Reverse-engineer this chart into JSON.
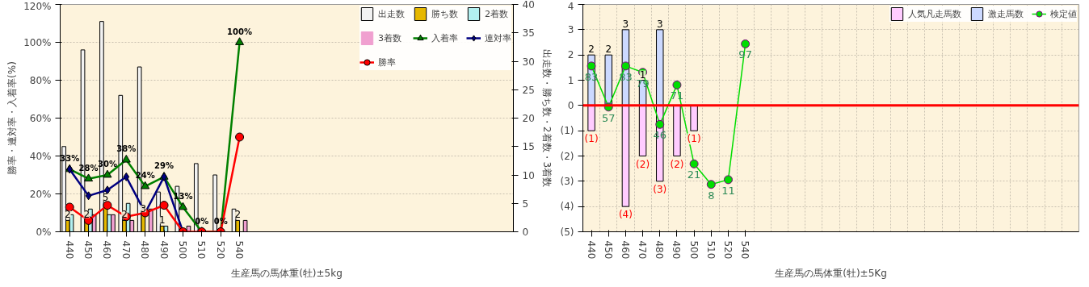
{
  "chart_data": [
    {
      "type": "bar",
      "xlabel": "生産馬の馬体重(牡)±5kg",
      "ylabel": "勝率・連対率・入着率(%)",
      "y2label": "出走数・勝ち数・2着数・3着数",
      "categories": [
        "440",
        "450",
        "460",
        "470",
        "480",
        "490",
        "500",
        "510",
        "520",
        "540",
        null,
        null,
        null,
        null,
        null,
        null,
        null,
        null,
        null,
        null,
        null,
        null,
        null,
        null
      ],
      "ylim": [
        0,
        120
      ],
      "yticks": [
        {
          "value": 0,
          "label": "0%"
        },
        {
          "value": 20,
          "label": "20%"
        },
        {
          "value": 40,
          "label": "40%"
        },
        {
          "value": 60,
          "label": "60%"
        },
        {
          "value": 80,
          "label": "80%"
        },
        {
          "value": 100,
          "label": "100%"
        },
        {
          "value": 120,
          "label": "120%"
        }
      ],
      "y2lim": [
        0,
        40
      ],
      "y2ticks": [
        0,
        5,
        10,
        15,
        20,
        25,
        30,
        35,
        40
      ],
      "grid": "y",
      "legend": "top",
      "series": [
        {
          "name": "出走数",
          "color": "#f2f2f2",
          "axis": "y2",
          "values": [
            15,
            32,
            37,
            24,
            29,
            7,
            8,
            12,
            10,
            4,
            null,
            null,
            null,
            null,
            null,
            null,
            null,
            null,
            null,
            null,
            null,
            null,
            null,
            null
          ]
        },
        {
          "name": "勝ち数",
          "color": "#e6b800",
          "axis": "y2",
          "values": [
            2,
            2,
            5,
            2,
            3,
            1,
            0,
            0,
            0,
            2,
            null,
            null,
            null,
            null,
            null,
            null,
            null,
            null,
            null,
            null,
            null,
            null,
            null,
            null
          ],
          "value_labels": [
            "2",
            "2",
            "5",
            "2",
            "3",
            "1",
            null,
            null,
            null,
            "2",
            null,
            null,
            null,
            null,
            null,
            null,
            null,
            null,
            null,
            null,
            null,
            null,
            null,
            null
          ]
        },
        {
          "name": "2着数",
          "color": "#b3f0f0",
          "axis": "y2",
          "values": [
            3,
            4,
            3,
            5,
            0,
            1,
            0,
            0,
            0,
            0,
            null,
            null,
            null,
            null,
            null,
            null,
            null,
            null,
            null,
            null,
            null,
            null,
            null,
            null
          ]
        },
        {
          "name": "3着数",
          "color": "#f0a0d0",
          "axis": "y2",
          "values": [
            0,
            3,
            3,
            2,
            4,
            0,
            1,
            0,
            0,
            2,
            null,
            null,
            null,
            null,
            null,
            null,
            null,
            null,
            null,
            null,
            null,
            null,
            null,
            null
          ]
        },
        {
          "name": "入着率",
          "type": "line",
          "marker": "triangle",
          "color": "#008000",
          "values": [
            33,
            28,
            30,
            38,
            24,
            29,
            13,
            0,
            0,
            100,
            null,
            null,
            null,
            null,
            null,
            null,
            null,
            null,
            null,
            null,
            null,
            null,
            null,
            null
          ],
          "value_labels": [
            "33%",
            "28%",
            "30%",
            "38%",
            "24%",
            "29%",
            "13%",
            "0%",
            "0%",
            "100%",
            null,
            null,
            null,
            null,
            null,
            null,
            null,
            null,
            null,
            null,
            null,
            null,
            null,
            null
          ]
        },
        {
          "name": "連対率",
          "type": "line",
          "marker": "diamond",
          "color": "#000080",
          "values": [
            33,
            19,
            22,
            29,
            10,
            29,
            0,
            null,
            null,
            null,
            null,
            null,
            null,
            null,
            null,
            null,
            null,
            null,
            null,
            null,
            null,
            null,
            null,
            null
          ]
        },
        {
          "name": "勝率",
          "type": "line",
          "marker": "circle",
          "color": "#ff0000",
          "values": [
            13,
            6,
            14,
            8,
            10,
            14,
            0,
            0,
            0,
            50,
            null,
            null,
            null,
            null,
            null,
            null,
            null,
            null,
            null,
            null,
            null,
            null,
            null,
            null
          ]
        }
      ]
    },
    {
      "type": "bar",
      "stacked": true,
      "xlabel": "生産馬の馬体重(牡)±5Kg",
      "categories": [
        "440",
        "450",
        "460",
        "470",
        "480",
        "490",
        "500",
        "510",
        "520",
        "540",
        null,
        null,
        null,
        null,
        null,
        null,
        null,
        null,
        null,
        null,
        null,
        null,
        null,
        null,
        null,
        null,
        null,
        null,
        null
      ],
      "ylim": [
        -5,
        4
      ],
      "yticks": [
        {
          "value": -5,
          "label": "(5)"
        },
        {
          "value": -4,
          "label": "(4)"
        },
        {
          "value": -3,
          "label": "(3)"
        },
        {
          "value": -2,
          "label": "(2)"
        },
        {
          "value": -1,
          "label": "(1)"
        },
        0,
        1,
        2,
        3,
        4
      ],
      "y2lim": [
        -22,
        122
      ],
      "grid": true,
      "legend": "top",
      "ref_lines": [
        {
          "axis": "y",
          "value": 0,
          "color": "#ff0000"
        }
      ],
      "series": [
        {
          "name": "人気凡走馬数",
          "color": "#ffccff",
          "values": [
            -1,
            0,
            -4,
            -2,
            -3,
            -2,
            -1,
            null,
            null,
            null,
            null,
            null,
            null,
            null,
            null,
            null,
            null,
            null,
            null,
            null,
            null,
            null,
            null,
            null,
            null,
            null,
            null,
            null,
            null
          ],
          "value_labels": [
            "(1)",
            null,
            "(4)",
            "(2)",
            "(3)",
            "(2)",
            "(1)",
            null,
            null,
            null,
            null,
            null,
            null,
            null,
            null,
            null,
            null,
            null,
            null,
            null,
            null,
            null,
            null,
            null,
            null,
            null,
            null,
            null,
            null
          ]
        },
        {
          "name": "激走馬数",
          "color": "#ccd9ff",
          "values": [
            2,
            2,
            3,
            1,
            3,
            null,
            null,
            null,
            null,
            null,
            null,
            null,
            null,
            null,
            null,
            null,
            null,
            null,
            null,
            null,
            null,
            null,
            null,
            null,
            null,
            null,
            null,
            null,
            null
          ],
          "value_labels": [
            "2",
            "2",
            "3",
            "1",
            "3",
            null,
            null,
            null,
            null,
            null,
            null,
            null,
            null,
            null,
            null,
            null,
            null,
            null,
            null,
            null,
            null,
            null,
            null,
            null,
            null,
            null,
            null,
            null,
            null
          ]
        },
        {
          "name": "検定値",
          "type": "line",
          "marker": "circle",
          "axis": "y2",
          "color": "#00dd00",
          "values": [
            83,
            57,
            83,
            79,
            46,
            71,
            21,
            8,
            11,
            97,
            null,
            null,
            null,
            null,
            null,
            null,
            null,
            null,
            null,
            null,
            null,
            null,
            null,
            null,
            null,
            null,
            null,
            null,
            null
          ],
          "value_labels": [
            "83",
            "57",
            "83",
            "79",
            "46",
            "71",
            "21",
            "8",
            "11",
            "97",
            null,
            null,
            null,
            null,
            null,
            null,
            null,
            null,
            null,
            null,
            null,
            null,
            null,
            null,
            null,
            null,
            null,
            null,
            null
          ]
        }
      ]
    }
  ]
}
